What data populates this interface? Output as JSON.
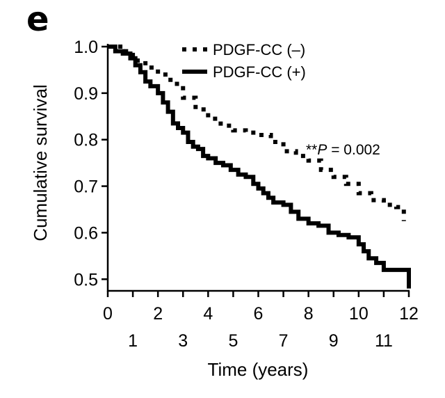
{
  "chart_data": {
    "type": "line",
    "panel_label": "e",
    "xlabel": "Time (years)",
    "ylabel": "Cumulative survival",
    "xlim": [
      0,
      12
    ],
    "ylim": [
      0.475,
      1.0
    ],
    "x_ticks_upper": [
      0,
      2,
      4,
      6,
      8,
      10,
      12
    ],
    "x_ticks_lower": [
      1,
      3,
      5,
      7,
      9,
      11
    ],
    "y_ticks": [
      "0.5",
      "0.6",
      "0.7",
      "0.8",
      "0.9",
      "1.0"
    ],
    "annotation": {
      "prefix": "**",
      "italic": "P",
      "rest": " = 0.002"
    },
    "series": [
      {
        "name": "PDGF-CC (–)",
        "style": "dotted",
        "color": "#000000",
        "x": [
          0,
          0.5,
          1,
          1.5,
          2,
          2.5,
          3,
          3.5,
          4,
          4.5,
          5,
          5.5,
          6,
          6.5,
          7,
          7.5,
          8,
          8.5,
          9,
          9.5,
          10,
          10.5,
          11,
          11.5,
          11.8
        ],
        "y": [
          1.0,
          0.99,
          0.97,
          0.955,
          0.94,
          0.92,
          0.89,
          0.865,
          0.845,
          0.83,
          0.82,
          0.815,
          0.81,
          0.795,
          0.775,
          0.765,
          0.755,
          0.735,
          0.72,
          0.705,
          0.685,
          0.67,
          0.66,
          0.655,
          0.625
        ]
      },
      {
        "name": "PDGF-CC (+)",
        "style": "solid",
        "color": "#000000",
        "x": [
          0,
          0.3,
          0.6,
          0.9,
          1.1,
          1.3,
          1.5,
          1.7,
          2.0,
          2.2,
          2.4,
          2.6,
          2.8,
          3.0,
          3.2,
          3.4,
          3.6,
          3.8,
          4.0,
          4.3,
          4.6,
          4.9,
          5.2,
          5.5,
          5.8,
          6.0,
          6.2,
          6.4,
          6.6,
          7.0,
          7.3,
          7.6,
          8.0,
          8.4,
          8.8,
          9.2,
          9.6,
          10.0,
          10.2,
          10.4,
          10.7,
          11.0,
          11.5,
          11.9,
          12.0
        ],
        "y": [
          1.0,
          0.99,
          0.985,
          0.975,
          0.96,
          0.945,
          0.925,
          0.915,
          0.9,
          0.88,
          0.86,
          0.835,
          0.825,
          0.815,
          0.795,
          0.785,
          0.78,
          0.765,
          0.76,
          0.75,
          0.745,
          0.735,
          0.725,
          0.72,
          0.705,
          0.695,
          0.685,
          0.675,
          0.665,
          0.66,
          0.645,
          0.63,
          0.62,
          0.615,
          0.6,
          0.595,
          0.59,
          0.575,
          0.56,
          0.545,
          0.535,
          0.52,
          0.52,
          0.52,
          0.48
        ]
      }
    ]
  }
}
